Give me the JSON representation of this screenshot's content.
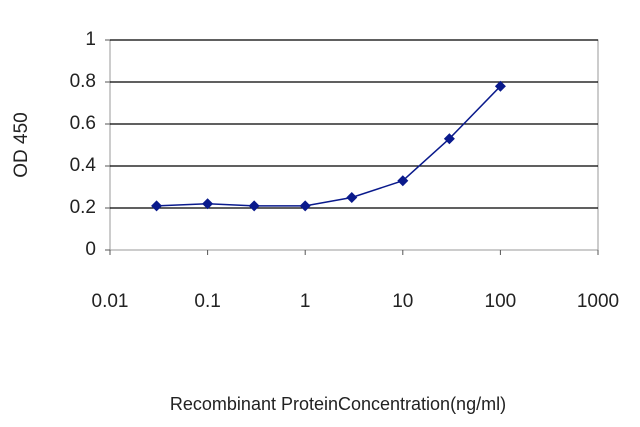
{
  "chart_data": {
    "type": "line",
    "x_label": "Recombinant ProteinConcentration(ng/ml)",
    "y_label": "OD 450",
    "x": [
      0.03,
      0.1,
      0.3,
      1,
      3,
      10,
      30,
      100
    ],
    "values": [
      0.21,
      0.22,
      0.21,
      0.21,
      0.25,
      0.33,
      0.53,
      0.78
    ],
    "color": "#0a1a8c",
    "xlim": [
      0.01,
      1000
    ],
    "ylim": [
      0,
      1
    ],
    "xticks": [
      0.01,
      0.1,
      1,
      10,
      100,
      1000
    ],
    "yticks": [
      0,
      0.2,
      0.4,
      0.6,
      0.8,
      1
    ],
    "x_log": true,
    "grid": true
  }
}
